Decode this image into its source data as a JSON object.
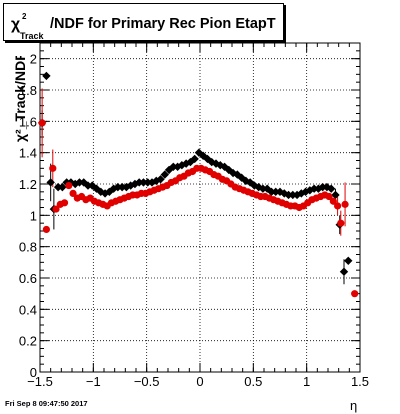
{
  "chart_data": {
    "type": "scatter",
    "title": "/NDF for Primary Rec Pion EtapT",
    "title_symbol": "χ",
    "title_superscript": "2",
    "title_subscript": "Track",
    "ylabel": "χ²_Track/NDF",
    "xlabel": "η",
    "xlim": [
      -1.5,
      1.5
    ],
    "ylim": [
      0,
      2.1
    ],
    "x_ticks": [
      "−1.5",
      "−1",
      "−0.5",
      "0",
      "0.5",
      "1",
      "1.5"
    ],
    "y_ticks": [
      "0",
      "0.2",
      "0.4",
      "0.6",
      "0.8",
      "1",
      "1.2",
      "1.4",
      "1.6",
      "1.8",
      "2"
    ],
    "grid": true,
    "colors": {
      "black_series": "#000000",
      "red_series": "#e00000"
    },
    "series": [
      {
        "color": "#000000",
        "points": [
          {
            "x": -1.48,
            "y": 1.59,
            "err": 0.08
          },
          {
            "x": -1.44,
            "y": 1.89,
            "err": 0.0
          },
          {
            "x": -1.4,
            "y": 1.21,
            "err": 0.12
          },
          {
            "x": -1.37,
            "y": 1.04,
            "err": 0.13
          },
          {
            "x": -1.33,
            "y": 1.18,
            "err": 0.0
          },
          {
            "x": -1.29,
            "y": 1.18,
            "err": 0.0
          },
          {
            "x": -1.25,
            "y": 1.21,
            "err": 0.0
          },
          {
            "x": -1.21,
            "y": 1.21,
            "err": 0.0
          },
          {
            "x": -1.17,
            "y": 1.2,
            "err": 0.0
          },
          {
            "x": -1.13,
            "y": 1.21,
            "err": 0.0
          },
          {
            "x": -1.09,
            "y": 1.21,
            "err": 0.0
          },
          {
            "x": -1.05,
            "y": 1.19,
            "err": 0.0
          },
          {
            "x": -1.01,
            "y": 1.19,
            "err": 0.0
          },
          {
            "x": -0.97,
            "y": 1.17,
            "err": 0.0
          },
          {
            "x": -0.93,
            "y": 1.15,
            "err": 0.0
          },
          {
            "x": -0.89,
            "y": 1.14,
            "err": 0.0
          },
          {
            "x": -0.85,
            "y": 1.15,
            "err": 0.0
          },
          {
            "x": -0.81,
            "y": 1.17,
            "err": 0.0
          },
          {
            "x": -0.77,
            "y": 1.18,
            "err": 0.0
          },
          {
            "x": -0.73,
            "y": 1.18,
            "err": 0.0
          },
          {
            "x": -0.69,
            "y": 1.18,
            "err": 0.0
          },
          {
            "x": -0.65,
            "y": 1.19,
            "err": 0.0
          },
          {
            "x": -0.61,
            "y": 1.2,
            "err": 0.0
          },
          {
            "x": -0.57,
            "y": 1.21,
            "err": 0.0
          },
          {
            "x": -0.53,
            "y": 1.21,
            "err": 0.0
          },
          {
            "x": -0.49,
            "y": 1.21,
            "err": 0.0
          },
          {
            "x": -0.45,
            "y": 1.21,
            "err": 0.0
          },
          {
            "x": -0.41,
            "y": 1.22,
            "err": 0.0
          },
          {
            "x": -0.37,
            "y": 1.23,
            "err": 0.0
          },
          {
            "x": -0.33,
            "y": 1.26,
            "err": 0.0
          },
          {
            "x": -0.29,
            "y": 1.29,
            "err": 0.0
          },
          {
            "x": -0.25,
            "y": 1.31,
            "err": 0.0
          },
          {
            "x": -0.21,
            "y": 1.31,
            "err": 0.0
          },
          {
            "x": -0.17,
            "y": 1.32,
            "err": 0.0
          },
          {
            "x": -0.13,
            "y": 1.33,
            "err": 0.0
          },
          {
            "x": -0.09,
            "y": 1.34,
            "err": 0.0
          },
          {
            "x": -0.05,
            "y": 1.36,
            "err": 0.0
          },
          {
            "x": -0.01,
            "y": 1.4,
            "err": 0.0
          },
          {
            "x": 0.03,
            "y": 1.38,
            "err": 0.0
          },
          {
            "x": 0.07,
            "y": 1.36,
            "err": 0.0
          },
          {
            "x": 0.11,
            "y": 1.34,
            "err": 0.0
          },
          {
            "x": 0.15,
            "y": 1.33,
            "err": 0.0
          },
          {
            "x": 0.19,
            "y": 1.32,
            "err": 0.0
          },
          {
            "x": 0.23,
            "y": 1.31,
            "err": 0.0
          },
          {
            "x": 0.27,
            "y": 1.29,
            "err": 0.0
          },
          {
            "x": 0.31,
            "y": 1.27,
            "err": 0.0
          },
          {
            "x": 0.35,
            "y": 1.26,
            "err": 0.0
          },
          {
            "x": 0.39,
            "y": 1.24,
            "err": 0.0
          },
          {
            "x": 0.43,
            "y": 1.22,
            "err": 0.0
          },
          {
            "x": 0.47,
            "y": 1.21,
            "err": 0.0
          },
          {
            "x": 0.51,
            "y": 1.19,
            "err": 0.0
          },
          {
            "x": 0.55,
            "y": 1.18,
            "err": 0.0
          },
          {
            "x": 0.59,
            "y": 1.17,
            "err": 0.0
          },
          {
            "x": 0.63,
            "y": 1.17,
            "err": 0.0
          },
          {
            "x": 0.67,
            "y": 1.15,
            "err": 0.0
          },
          {
            "x": 0.71,
            "y": 1.15,
            "err": 0.0
          },
          {
            "x": 0.75,
            "y": 1.15,
            "err": 0.0
          },
          {
            "x": 0.79,
            "y": 1.14,
            "err": 0.0
          },
          {
            "x": 0.83,
            "y": 1.13,
            "err": 0.0
          },
          {
            "x": 0.87,
            "y": 1.13,
            "err": 0.0
          },
          {
            "x": 0.91,
            "y": 1.13,
            "err": 0.0
          },
          {
            "x": 0.95,
            "y": 1.14,
            "err": 0.0
          },
          {
            "x": 0.99,
            "y": 1.15,
            "err": 0.0
          },
          {
            "x": 1.03,
            "y": 1.16,
            "err": 0.0
          },
          {
            "x": 1.07,
            "y": 1.17,
            "err": 0.0
          },
          {
            "x": 1.11,
            "y": 1.17,
            "err": 0.0
          },
          {
            "x": 1.15,
            "y": 1.18,
            "err": 0.0
          },
          {
            "x": 1.19,
            "y": 1.18,
            "err": 0.0
          },
          {
            "x": 1.23,
            "y": 1.17,
            "err": 0.0
          },
          {
            "x": 1.27,
            "y": 1.13,
            "err": 0.04
          },
          {
            "x": 1.31,
            "y": 0.94,
            "err": 0.06
          },
          {
            "x": 1.35,
            "y": 0.64,
            "err": 0.08
          },
          {
            "x": 1.39,
            "y": 0.71,
            "err": 0.0
          }
        ]
      },
      {
        "color": "#e00000",
        "points": [
          {
            "x": -1.48,
            "y": 1.59,
            "err": 0.22
          },
          {
            "x": -1.44,
            "y": 0.91,
            "err": 0.0
          },
          {
            "x": -1.38,
            "y": 1.3,
            "err": 0.12
          },
          {
            "x": -1.35,
            "y": 1.04,
            "err": 0.0
          },
          {
            "x": -1.31,
            "y": 1.07,
            "err": 0.0
          },
          {
            "x": -1.27,
            "y": 1.08,
            "err": 0.0
          },
          {
            "x": -1.23,
            "y": 1.19,
            "err": 0.0
          },
          {
            "x": -1.19,
            "y": 1.14,
            "err": 0.0
          },
          {
            "x": -1.15,
            "y": 1.11,
            "err": 0.0
          },
          {
            "x": -1.11,
            "y": 1.12,
            "err": 0.0
          },
          {
            "x": -1.07,
            "y": 1.1,
            "err": 0.0
          },
          {
            "x": -1.03,
            "y": 1.11,
            "err": 0.0
          },
          {
            "x": -0.99,
            "y": 1.09,
            "err": 0.0
          },
          {
            "x": -0.95,
            "y": 1.08,
            "err": 0.0
          },
          {
            "x": -0.91,
            "y": 1.07,
            "err": 0.0
          },
          {
            "x": -0.87,
            "y": 1.06,
            "err": 0.0
          },
          {
            "x": -0.83,
            "y": 1.08,
            "err": 0.0
          },
          {
            "x": -0.79,
            "y": 1.09,
            "err": 0.0
          },
          {
            "x": -0.75,
            "y": 1.1,
            "err": 0.0
          },
          {
            "x": -0.71,
            "y": 1.11,
            "err": 0.0
          },
          {
            "x": -0.67,
            "y": 1.12,
            "err": 0.0
          },
          {
            "x": -0.63,
            "y": 1.13,
            "err": 0.0
          },
          {
            "x": -0.59,
            "y": 1.13,
            "err": 0.0
          },
          {
            "x": -0.55,
            "y": 1.14,
            "err": 0.0
          },
          {
            "x": -0.51,
            "y": 1.14,
            "err": 0.0
          },
          {
            "x": -0.47,
            "y": 1.15,
            "err": 0.0
          },
          {
            "x": -0.43,
            "y": 1.16,
            "err": 0.0
          },
          {
            "x": -0.39,
            "y": 1.17,
            "err": 0.0
          },
          {
            "x": -0.35,
            "y": 1.18,
            "err": 0.0
          },
          {
            "x": -0.31,
            "y": 1.19,
            "err": 0.0
          },
          {
            "x": -0.27,
            "y": 1.21,
            "err": 0.0
          },
          {
            "x": -0.23,
            "y": 1.22,
            "err": 0.0
          },
          {
            "x": -0.19,
            "y": 1.24,
            "err": 0.0
          },
          {
            "x": -0.15,
            "y": 1.25,
            "err": 0.0
          },
          {
            "x": -0.11,
            "y": 1.27,
            "err": 0.0
          },
          {
            "x": -0.07,
            "y": 1.28,
            "err": 0.0
          },
          {
            "x": -0.03,
            "y": 1.3,
            "err": 0.0
          },
          {
            "x": 0.01,
            "y": 1.3,
            "err": 0.0
          },
          {
            "x": 0.05,
            "y": 1.29,
            "err": 0.0
          },
          {
            "x": 0.09,
            "y": 1.28,
            "err": 0.0
          },
          {
            "x": 0.13,
            "y": 1.26,
            "err": 0.0
          },
          {
            "x": 0.17,
            "y": 1.25,
            "err": 0.0
          },
          {
            "x": 0.21,
            "y": 1.23,
            "err": 0.0
          },
          {
            "x": 0.25,
            "y": 1.22,
            "err": 0.0
          },
          {
            "x": 0.29,
            "y": 1.2,
            "err": 0.0
          },
          {
            "x": 0.33,
            "y": 1.18,
            "err": 0.0
          },
          {
            "x": 0.37,
            "y": 1.17,
            "err": 0.0
          },
          {
            "x": 0.41,
            "y": 1.16,
            "err": 0.0
          },
          {
            "x": 0.45,
            "y": 1.15,
            "err": 0.0
          },
          {
            "x": 0.49,
            "y": 1.14,
            "err": 0.0
          },
          {
            "x": 0.53,
            "y": 1.13,
            "err": 0.0
          },
          {
            "x": 0.57,
            "y": 1.12,
            "err": 0.0
          },
          {
            "x": 0.61,
            "y": 1.12,
            "err": 0.0
          },
          {
            "x": 0.65,
            "y": 1.11,
            "err": 0.0
          },
          {
            "x": 0.69,
            "y": 1.1,
            "err": 0.0
          },
          {
            "x": 0.73,
            "y": 1.09,
            "err": 0.0
          },
          {
            "x": 0.77,
            "y": 1.08,
            "err": 0.0
          },
          {
            "x": 0.81,
            "y": 1.07,
            "err": 0.0
          },
          {
            "x": 0.85,
            "y": 1.06,
            "err": 0.0
          },
          {
            "x": 0.89,
            "y": 1.06,
            "err": 0.0
          },
          {
            "x": 0.93,
            "y": 1.05,
            "err": 0.0
          },
          {
            "x": 0.97,
            "y": 1.06,
            "err": 0.0
          },
          {
            "x": 1.01,
            "y": 1.08,
            "err": 0.0
          },
          {
            "x": 1.05,
            "y": 1.1,
            "err": 0.0
          },
          {
            "x": 1.09,
            "y": 1.11,
            "err": 0.0
          },
          {
            "x": 1.13,
            "y": 1.12,
            "err": 0.0
          },
          {
            "x": 1.17,
            "y": 1.13,
            "err": 0.0
          },
          {
            "x": 1.21,
            "y": 1.12,
            "err": 0.0
          },
          {
            "x": 1.25,
            "y": 1.09,
            "err": 0.0
          },
          {
            "x": 1.29,
            "y": 1.06,
            "err": 0.06
          },
          {
            "x": 1.32,
            "y": 0.95,
            "err": 0.08
          },
          {
            "x": 1.36,
            "y": 1.07,
            "err": 0.14
          },
          {
            "x": 1.45,
            "y": 0.5,
            "err": 0.0
          }
        ]
      }
    ]
  },
  "footer": {
    "timestamp": "Fri Sep  8 09:47:50 2017"
  }
}
